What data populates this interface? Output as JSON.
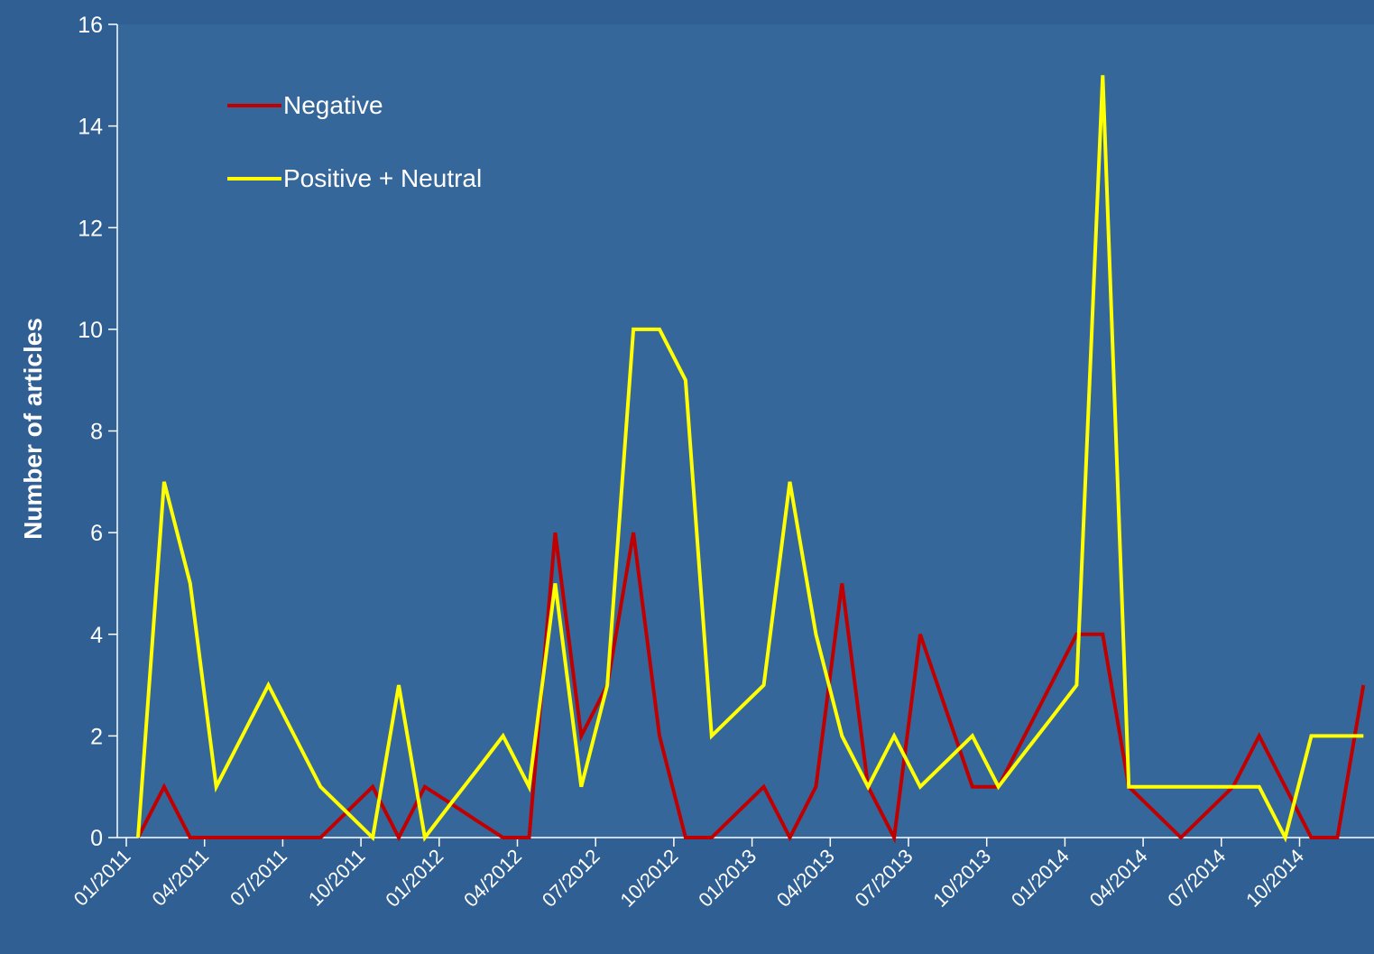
{
  "chart_data": {
    "type": "line",
    "y_label": "Number of articles",
    "categories": [
      "01/2011",
      null,
      null,
      "04/2011",
      null,
      null,
      "07/2011",
      null,
      null,
      "10/2011",
      null,
      null,
      "01/2012",
      null,
      null,
      "04/2012",
      null,
      null,
      "07/2012",
      null,
      null,
      "10/2012",
      null,
      null,
      "01/2013",
      null,
      null,
      "04/2013",
      null,
      null,
      "07/2013",
      null,
      null,
      "10/2013",
      null,
      null,
      "01/2014",
      null,
      null,
      "04/2014",
      null,
      null,
      "07/2014",
      null,
      null,
      "10/2014",
      null,
      null
    ],
    "series": [
      {
        "name": "Negative",
        "color": "#c00000",
        "values": [
          0,
          1,
          0,
          0,
          0,
          0,
          0,
          0,
          0.5,
          1,
          0,
          1,
          0.67,
          0.33,
          0,
          0,
          6,
          2,
          3,
          6,
          2,
          0,
          0,
          0.5,
          1,
          0,
          1,
          5,
          1,
          0,
          4,
          2.5,
          1,
          1,
          2,
          3,
          4,
          4,
          1,
          0.5,
          0,
          0.5,
          1,
          2,
          1,
          0,
          0,
          3
        ]
      },
      {
        "name": "Positive + Neutral",
        "color": "#ffff00",
        "values": [
          0,
          7,
          5,
          1,
          2,
          3,
          2,
          1,
          0.5,
          0,
          3,
          0,
          0.67,
          1.33,
          2,
          1,
          5,
          1,
          3,
          10,
          10,
          9,
          2,
          2.5,
          3,
          7,
          4,
          2,
          1,
          2,
          1,
          1.5,
          2,
          1,
          1.67,
          2.33,
          3,
          15,
          1,
          1,
          1,
          1,
          1,
          1,
          0,
          2,
          2,
          2
        ]
      }
    ],
    "ylim": [
      0,
      16
    ],
    "yticks": [
      0,
      2,
      4,
      6,
      8,
      10,
      12,
      14,
      16
    ],
    "legend": "upper-left"
  }
}
